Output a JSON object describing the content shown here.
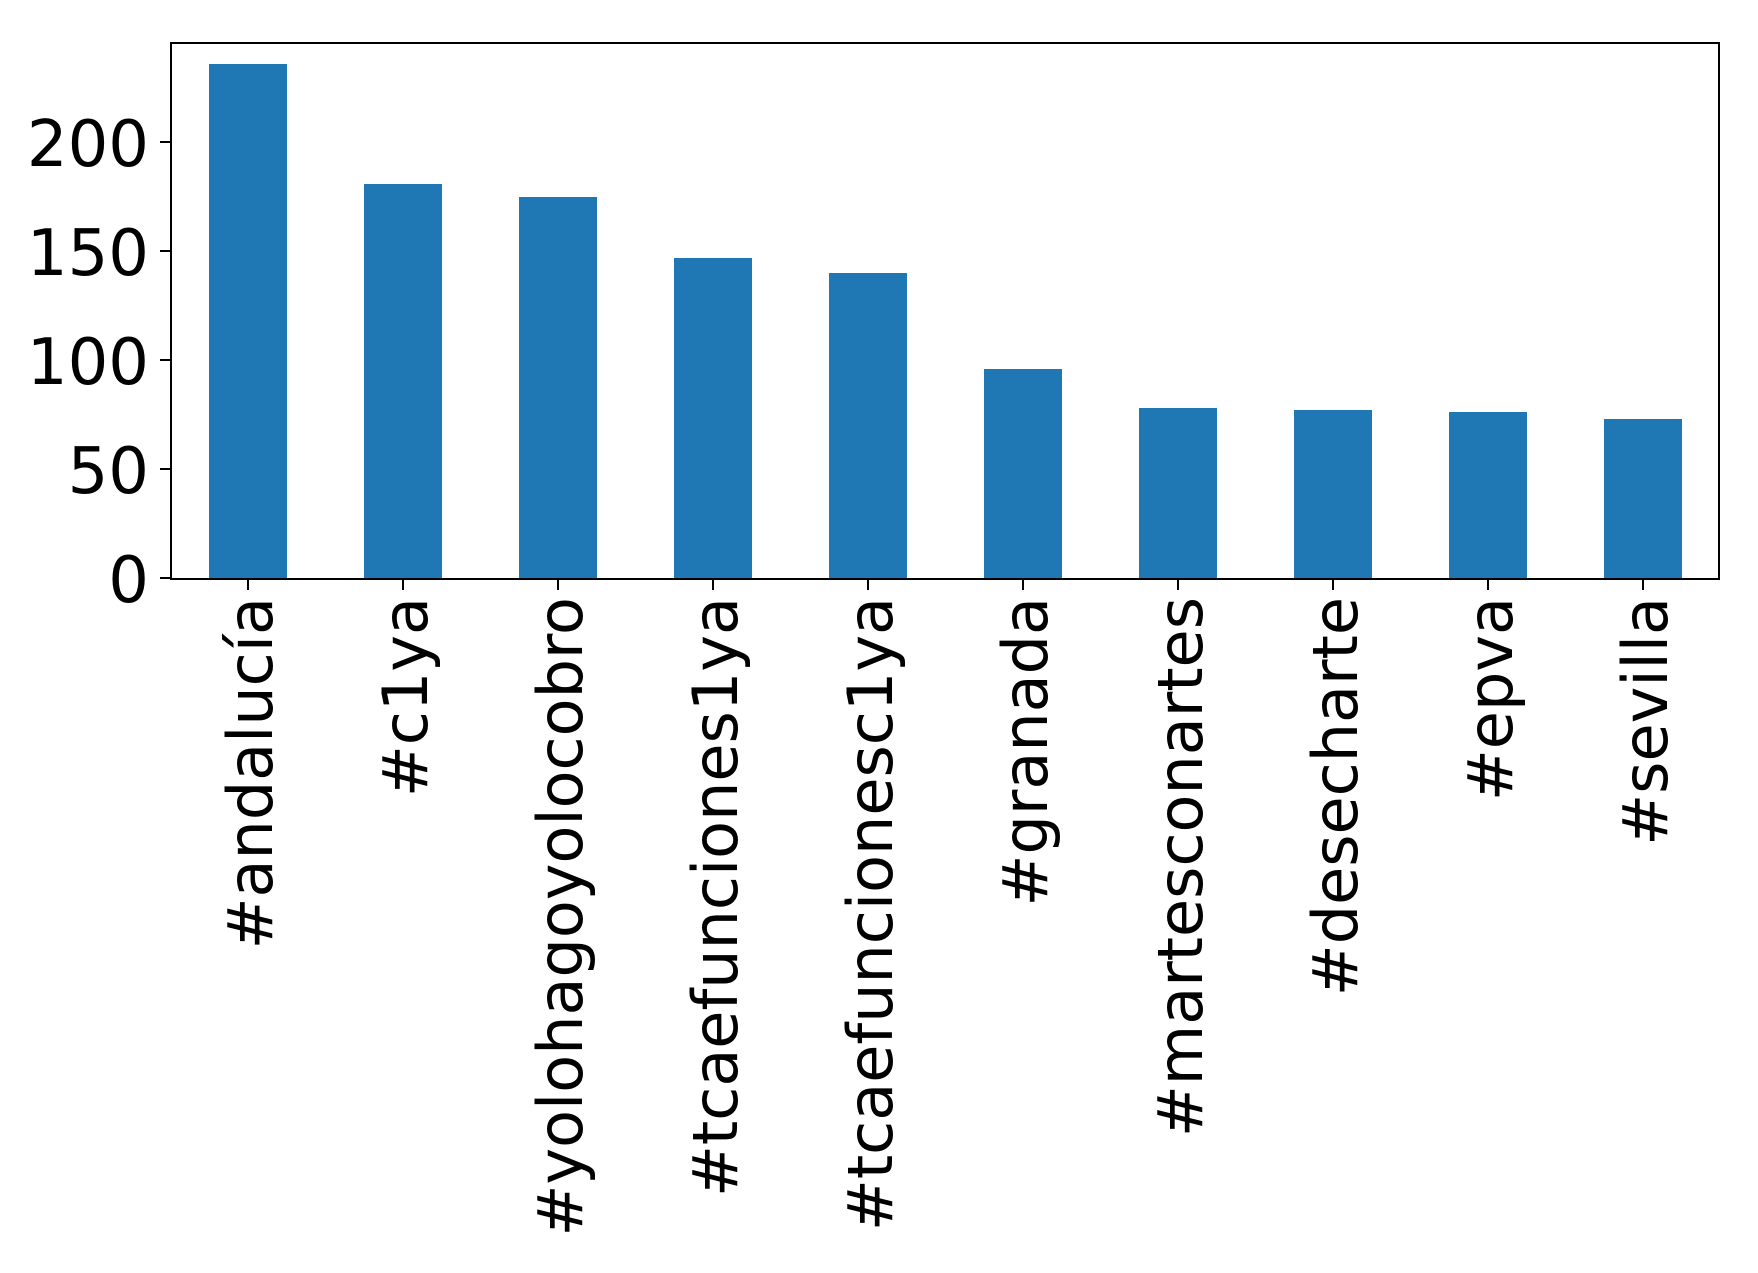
{
  "chart_data": {
    "type": "bar",
    "title": "",
    "xlabel": "",
    "ylabel": "",
    "categories": [
      "#andalucía",
      "#c1ya",
      "#yolohagoyolocobro",
      "#tcaefunciones1ya",
      "#tcaefuncionesc1ya",
      "#granada",
      "#martesconartes",
      "#desecharte",
      "#epva",
      "#sevilla"
    ],
    "values": [
      236,
      181,
      175,
      147,
      140,
      96,
      78,
      77,
      76,
      73
    ],
    "yticks": [
      0,
      50,
      100,
      150,
      200
    ],
    "ylim": [
      0,
      246
    ],
    "bar_width_fraction": 0.5,
    "tick_label_rotation": 90,
    "grid": false,
    "legend_position": "none",
    "bar_color": "#1f77b4",
    "axis_color": "#000000",
    "background_color": "#ffffff"
  }
}
